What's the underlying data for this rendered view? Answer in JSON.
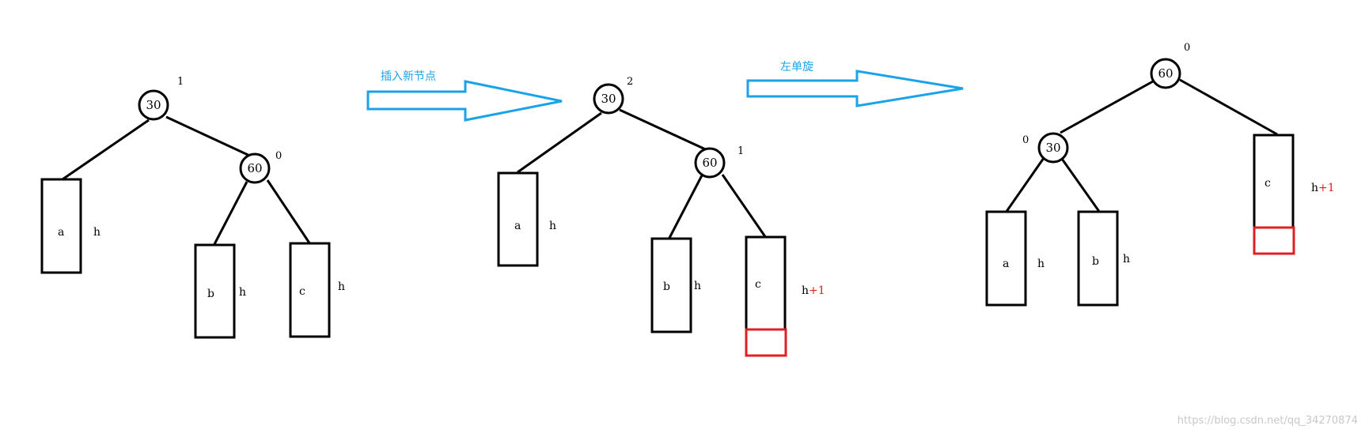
{
  "colors": {
    "arrow": "#1aa3e8",
    "highlight": "#e02020",
    "line": "#000000"
  },
  "arrows": [
    {
      "label": "插入新节点"
    },
    {
      "label": "左单旋"
    }
  ],
  "trees": [
    {
      "nodes": [
        {
          "label": "30",
          "balance_factor": "1"
        },
        {
          "label": "60",
          "balance_factor": "0"
        }
      ],
      "subtrees": [
        {
          "name": "a",
          "height": "h"
        },
        {
          "name": "b",
          "height": "h"
        },
        {
          "name": "c",
          "height": "h"
        }
      ]
    },
    {
      "nodes": [
        {
          "label": "30",
          "balance_factor": "2"
        },
        {
          "label": "60",
          "balance_factor": "1"
        }
      ],
      "subtrees": [
        {
          "name": "a",
          "height": "h"
        },
        {
          "name": "b",
          "height": "h"
        },
        {
          "name": "c",
          "height": "h",
          "height_suffix": "+1"
        }
      ]
    },
    {
      "nodes": [
        {
          "label": "60",
          "balance_factor": "0"
        },
        {
          "label": "30",
          "balance_factor": "0"
        }
      ],
      "subtrees": [
        {
          "name": "a",
          "height": "h"
        },
        {
          "name": "b",
          "height": "h"
        },
        {
          "name": "c",
          "height": "h",
          "height_suffix": "+1"
        }
      ]
    }
  ],
  "watermark": "https://blog.csdn.net/qq_34270874"
}
